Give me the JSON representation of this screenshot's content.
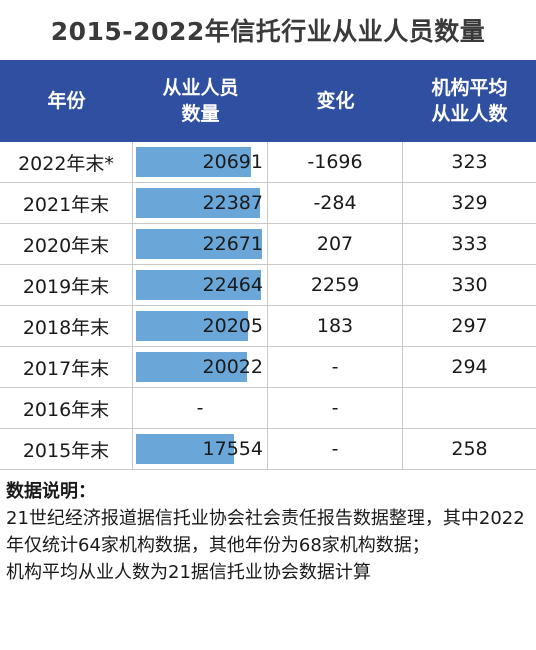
{
  "title": "2015-2022年信托行业从业人员数量",
  "headers": {
    "year": "年份",
    "staff_line1": "从业人员",
    "staff_line2": "数量",
    "change": "变化",
    "avg_line1": "机构平均",
    "avg_line2": "从业人数"
  },
  "max_staff": 22671,
  "rows": [
    {
      "year": "2022年末*",
      "staff": "20691",
      "staff_num": 20691,
      "change": "-1696",
      "avg": "323"
    },
    {
      "year": "2021年末",
      "staff": "22387",
      "staff_num": 22387,
      "change": "-284",
      "avg": "329"
    },
    {
      "year": "2020年末",
      "staff": "22671",
      "staff_num": 22671,
      "change": "207",
      "avg": "333"
    },
    {
      "year": "2019年末",
      "staff": "22464",
      "staff_num": 22464,
      "change": "2259",
      "avg": "330"
    },
    {
      "year": "2018年末",
      "staff": "20205",
      "staff_num": 20205,
      "change": "183",
      "avg": "297"
    },
    {
      "year": "2017年末",
      "staff": "20022",
      "staff_num": 20022,
      "change": "-",
      "avg": "294"
    },
    {
      "year": "2016年末",
      "staff": "-",
      "staff_num": null,
      "change": "-",
      "avg": ""
    },
    {
      "year": "2015年末",
      "staff": "17554",
      "staff_num": 17554,
      "change": "-",
      "avg": "258"
    }
  ],
  "notes": {
    "heading": "数据说明：",
    "line1": "21世纪经济报道据信托业协会社会责任报告数据整理，其中2022年仅统计64家机构数据，其他年份为68家机构数据；",
    "line2": "机构平均从业人数为21据信托业协会数据计算"
  },
  "colors": {
    "header_bg": "#2f4fa0",
    "bar": "#6aa6d8"
  }
}
